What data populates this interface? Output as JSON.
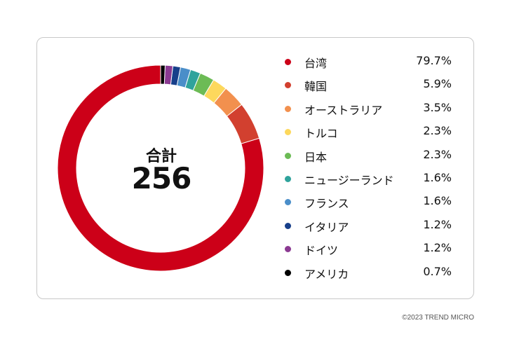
{
  "chart_data": {
    "type": "pie",
    "donut": true,
    "center_title": "合計",
    "center_total": "256",
    "categories": [
      "台湾",
      "韓国",
      "オーストラリア",
      "トルコ",
      "日本",
      "ニュージーランド",
      "フランス",
      "イタリア",
      "ドイツ",
      "アメリカ"
    ],
    "values": [
      79.7,
      5.9,
      3.5,
      2.3,
      2.3,
      1.6,
      1.6,
      1.2,
      1.2,
      0.7
    ],
    "value_labels": [
      "79.7%",
      "5.9%",
      "3.5%",
      "2.3%",
      "2.3%",
      "1.6%",
      "1.6%",
      "1.2%",
      "1.2%",
      "0.7%"
    ],
    "colors": [
      "#cc0018",
      "#d2402f",
      "#f2904e",
      "#fdd85c",
      "#6cbb55",
      "#2fa39c",
      "#4a8ec9",
      "#173f8a",
      "#8b3a92",
      "#000000"
    ],
    "legend_position": "right"
  },
  "footer": {
    "copyright": "©2023 TREND MICRO"
  }
}
